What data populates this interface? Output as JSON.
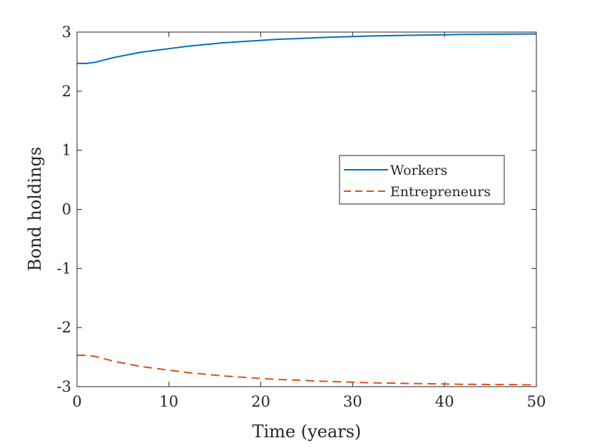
{
  "chart_data": {
    "type": "line",
    "title": "",
    "xlabel": "Time (years)",
    "ylabel": "Bond holdings",
    "xlim": [
      0,
      50
    ],
    "ylim": [
      -3,
      3
    ],
    "xticks": [
      0,
      10,
      20,
      30,
      40,
      50
    ],
    "yticks": [
      -3,
      -2,
      -1,
      0,
      1,
      2,
      3
    ],
    "xtick_labels": [
      "0",
      "10",
      "20",
      "30",
      "40",
      "50"
    ],
    "ytick_labels": [
      "-3",
      "-2",
      "-1",
      "0",
      "1",
      "2",
      "3"
    ],
    "grid": false,
    "box": true,
    "legend_position": "center-right",
    "series": [
      {
        "name": "Workers",
        "color": "#0072BD",
        "style": "solid",
        "x": [
          0,
          1,
          2,
          3,
          4,
          5,
          6,
          7,
          8,
          9,
          10,
          12,
          14,
          16,
          18,
          20,
          22,
          24,
          26,
          28,
          30,
          32,
          34,
          36,
          38,
          40,
          42,
          44,
          46,
          48,
          50
        ],
        "y": [
          2.47,
          2.47,
          2.49,
          2.53,
          2.57,
          2.6,
          2.63,
          2.66,
          2.68,
          2.7,
          2.72,
          2.76,
          2.79,
          2.82,
          2.84,
          2.86,
          2.88,
          2.89,
          2.905,
          2.915,
          2.925,
          2.935,
          2.94,
          2.945,
          2.95,
          2.955,
          2.96,
          2.962,
          2.965,
          2.967,
          2.97
        ]
      },
      {
        "name": "Entrepreneurs",
        "color": "#D95319",
        "style": "dashed",
        "x": [
          0,
          1,
          2,
          3,
          4,
          5,
          6,
          7,
          8,
          9,
          10,
          12,
          14,
          16,
          18,
          20,
          22,
          24,
          26,
          28,
          30,
          32,
          34,
          36,
          38,
          40,
          42,
          44,
          46,
          48,
          50
        ],
        "y": [
          -2.47,
          -2.47,
          -2.49,
          -2.53,
          -2.57,
          -2.6,
          -2.63,
          -2.66,
          -2.68,
          -2.7,
          -2.72,
          -2.76,
          -2.79,
          -2.82,
          -2.84,
          -2.86,
          -2.88,
          -2.89,
          -2.905,
          -2.915,
          -2.925,
          -2.935,
          -2.94,
          -2.945,
          -2.95,
          -2.955,
          -2.96,
          -2.962,
          -2.965,
          -2.967,
          -2.97
        ]
      }
    ]
  }
}
